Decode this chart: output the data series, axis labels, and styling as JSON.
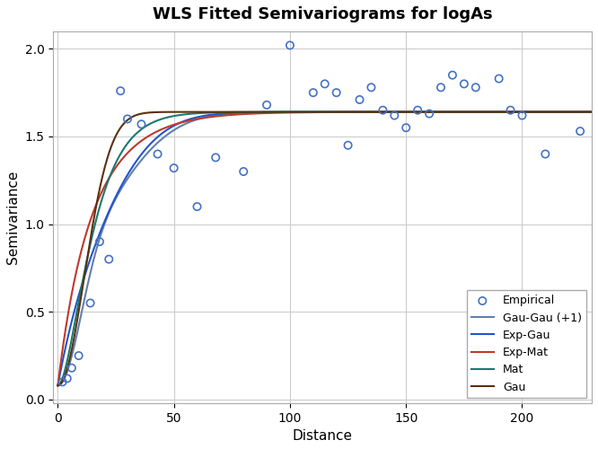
{
  "title": "WLS Fitted Semivariograms for logAs",
  "xlabel": "Distance",
  "ylabel": "Semivariance",
  "xlim": [
    -2,
    230
  ],
  "ylim": [
    -0.02,
    2.1
  ],
  "yticks": [
    0.0,
    0.5,
    1.0,
    1.5,
    2.0
  ],
  "xticks": [
    0,
    50,
    100,
    150,
    200
  ],
  "empirical_x": [
    2,
    4,
    6,
    9,
    14,
    18,
    22,
    27,
    30,
    36,
    43,
    50,
    60,
    68,
    80,
    90,
    100,
    110,
    115,
    120,
    125,
    130,
    135,
    140,
    145,
    150,
    155,
    160,
    165,
    170,
    175,
    180,
    190,
    195,
    200,
    210,
    225
  ],
  "empirical_y": [
    0.1,
    0.12,
    0.18,
    0.25,
    0.55,
    0.9,
    0.8,
    1.76,
    1.6,
    1.57,
    1.4,
    1.32,
    1.1,
    1.38,
    1.3,
    1.68,
    2.02,
    1.75,
    1.8,
    1.75,
    1.45,
    1.71,
    1.78,
    1.65,
    1.62,
    1.55,
    1.65,
    1.63,
    1.78,
    1.85,
    1.8,
    1.78,
    1.83,
    1.65,
    1.62,
    1.4,
    1.53
  ],
  "empirical_color": "#4472C4",
  "empirical_markersize": 6,
  "model_colors": {
    "Gau-Gau (+1)": "#6080b0",
    "Exp-Gau": "#2255cc",
    "Exp-Mat": "#c0392b",
    "Mat": "#1a7a6e",
    "Gau": "#5c3010"
  },
  "model_linewidths": {
    "Gau-Gau (+1)": 1.5,
    "Exp-Gau": 1.5,
    "Exp-Mat": 1.5,
    "Mat": 1.5,
    "Gau": 1.5
  },
  "total_sill": 1.64,
  "nugget": 0.08,
  "background_color": "#ffffff",
  "grid_color": "#cccccc",
  "legend_fontsize": 9,
  "title_fontsize": 13,
  "axis_fontsize": 11,
  "tick_fontsize": 10
}
